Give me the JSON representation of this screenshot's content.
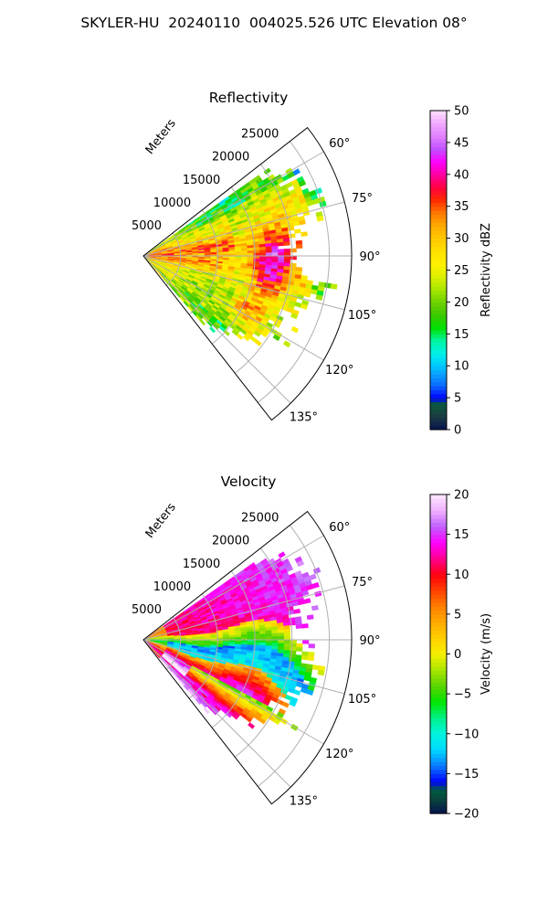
{
  "figure_title": "SKYLER-HU  20240110  004025.526 UTC Elevation 08°",
  "chart_data": [
    {
      "type": "heatmap",
      "projection": "polar-sector",
      "title": "Reflectivity",
      "radial_label": "Meters",
      "radial_ticks": [
        5000,
        10000,
        15000,
        20000,
        25000
      ],
      "radial_tick_labels": [
        "5000",
        "10000",
        "15000",
        "20000",
        "25000"
      ],
      "rlim": [
        0,
        28000
      ],
      "azimuth_range_deg": [
        52,
        142
      ],
      "azimuth_ticks": [
        60,
        75,
        90,
        105,
        120,
        135
      ],
      "azimuth_tick_labels": [
        "60°",
        "75°",
        "90°",
        "105°",
        "120°",
        "135°"
      ],
      "grid": true,
      "colorbar": {
        "label": "Reflectivity dBZ",
        "range": [
          0,
          50
        ],
        "ticks": [
          0,
          5,
          10,
          15,
          20,
          25,
          30,
          35,
          40,
          45,
          50
        ],
        "tick_labels": [
          "0",
          "5",
          "10",
          "15",
          "20",
          "25",
          "30",
          "35",
          "40",
          "45",
          "50"
        ],
        "stops": [
          {
            "v": 0,
            "c": "#07124f"
          },
          {
            "v": 2,
            "c": "#1b3a43"
          },
          {
            "v": 4,
            "c": "#0a5a3a"
          },
          {
            "v": 5,
            "c": "#0000ff"
          },
          {
            "v": 7,
            "c": "#0a6cff"
          },
          {
            "v": 9,
            "c": "#0aa8ff"
          },
          {
            "v": 10,
            "c": "#00c8ff"
          },
          {
            "v": 12,
            "c": "#00f0e8"
          },
          {
            "v": 14,
            "c": "#00f5a0"
          },
          {
            "v": 16,
            "c": "#00e000"
          },
          {
            "v": 18,
            "c": "#3cc800"
          },
          {
            "v": 20,
            "c": "#6ed200"
          },
          {
            "v": 22,
            "c": "#a8e600"
          },
          {
            "v": 24,
            "c": "#dcf000"
          },
          {
            "v": 26,
            "c": "#fff000"
          },
          {
            "v": 28,
            "c": "#ffe000"
          },
          {
            "v": 30,
            "c": "#ffc800"
          },
          {
            "v": 32,
            "c": "#ffaa00"
          },
          {
            "v": 34,
            "c": "#ff7800"
          },
          {
            "v": 36,
            "c": "#ff2a00"
          },
          {
            "v": 38,
            "c": "#ff0040"
          },
          {
            "v": 40,
            "c": "#ff00a0"
          },
          {
            "v": 42,
            "c": "#ff00ff"
          },
          {
            "v": 44,
            "c": "#c050ff"
          },
          {
            "v": 46,
            "c": "#e080ff"
          },
          {
            "v": 48,
            "c": "#f0a8ff"
          },
          {
            "v": 50,
            "c": "#fde0ff"
          }
        ]
      }
    },
    {
      "type": "heatmap",
      "projection": "polar-sector",
      "title": "Velocity",
      "radial_label": "Meters",
      "radial_ticks": [
        5000,
        10000,
        15000,
        20000,
        25000
      ],
      "radial_tick_labels": [
        "5000",
        "10000",
        "15000",
        "20000",
        "25000"
      ],
      "rlim": [
        0,
        28000
      ],
      "azimuth_range_deg": [
        52,
        142
      ],
      "azimuth_ticks": [
        60,
        75,
        90,
        105,
        120,
        135
      ],
      "azimuth_tick_labels": [
        "60°",
        "75°",
        "90°",
        "105°",
        "120°",
        "135°"
      ],
      "grid": true,
      "colorbar": {
        "label": "Velocity (m/s)",
        "range": [
          -20,
          20
        ],
        "ticks": [
          -20,
          -15,
          -10,
          -5,
          0,
          5,
          10,
          15,
          20
        ],
        "tick_labels": [
          "−20",
          "−15",
          "−10",
          "−5",
          "0",
          "5",
          "10",
          "15",
          "20"
        ],
        "stops": [
          {
            "v": -20,
            "c": "#07124f"
          },
          {
            "v": -18,
            "c": "#0a4a3c"
          },
          {
            "v": -17,
            "c": "#005a40"
          },
          {
            "v": -16,
            "c": "#0000ff"
          },
          {
            "v": -14,
            "c": "#0a7aff"
          },
          {
            "v": -12,
            "c": "#00d8ff"
          },
          {
            "v": -10,
            "c": "#00f5e0"
          },
          {
            "v": -8,
            "c": "#00f08a"
          },
          {
            "v": -6,
            "c": "#00e600"
          },
          {
            "v": -4,
            "c": "#5ad200"
          },
          {
            "v": -2,
            "c": "#a8e600"
          },
          {
            "v": 0,
            "c": "#f5f000"
          },
          {
            "v": 2,
            "c": "#ffd000"
          },
          {
            "v": 4,
            "c": "#ffaa00"
          },
          {
            "v": 6,
            "c": "#ff8000"
          },
          {
            "v": 8,
            "c": "#ff4000"
          },
          {
            "v": 10,
            "c": "#ff0010"
          },
          {
            "v": 12,
            "c": "#ff0090"
          },
          {
            "v": 14,
            "c": "#ff00ff"
          },
          {
            "v": 16,
            "c": "#c060ff"
          },
          {
            "v": 18,
            "c": "#f0b0ff"
          },
          {
            "v": 20,
            "c": "#fde8ff"
          }
        ]
      }
    }
  ]
}
